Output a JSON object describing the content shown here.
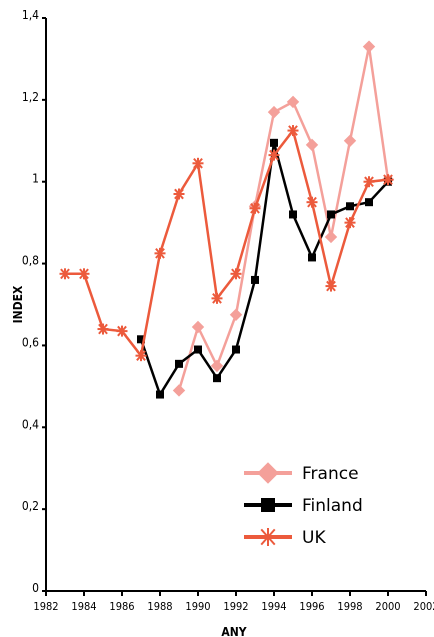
{
  "chart_data": {
    "type": "line",
    "title": "",
    "xlabel": "ANY",
    "ylabel": "INDEX",
    "xlim": [
      1982,
      2002
    ],
    "ylim": [
      0,
      1.4
    ],
    "x_ticks": [
      1982,
      1984,
      1986,
      1988,
      1990,
      1992,
      1994,
      1996,
      1998,
      2000,
      2002
    ],
    "y_ticks": [
      0,
      0.2,
      0.4,
      0.6,
      0.8,
      1,
      1.2,
      1.4
    ],
    "y_tick_labels": [
      "0",
      "0,2",
      "0,4",
      "0,6",
      "0,8",
      "1",
      "1,2",
      "1,4"
    ],
    "grid": false,
    "legend_position": "bottom-right",
    "series": [
      {
        "name": "France",
        "color": "#f4a09a",
        "marker": "diamond",
        "points": [
          [
            1989,
            0.49
          ],
          [
            1990,
            0.645
          ],
          [
            1991,
            0.55
          ],
          [
            1992,
            0.675
          ],
          [
            1993,
            0.94
          ],
          [
            1994,
            1.17
          ],
          [
            1995,
            1.195
          ],
          [
            1996,
            1.09
          ],
          [
            1997,
            0.865
          ],
          [
            1998,
            1.1
          ],
          [
            1999,
            1.33
          ],
          [
            2000,
            1.005
          ]
        ]
      },
      {
        "name": "Finland",
        "color": "#000000",
        "marker": "square",
        "points": [
          [
            1987,
            0.615
          ],
          [
            1988,
            0.48
          ],
          [
            1989,
            0.555
          ],
          [
            1990,
            0.59
          ],
          [
            1991,
            0.52
          ],
          [
            1992,
            0.59
          ],
          [
            1993,
            0.76
          ],
          [
            1994,
            1.095
          ],
          [
            1995,
            0.92
          ],
          [
            1996,
            0.815
          ],
          [
            1997,
            0.92
          ],
          [
            1998,
            0.94
          ],
          [
            1999,
            0.95
          ],
          [
            2000,
            1.0
          ]
        ]
      },
      {
        "name": "UK",
        "color": "#ec5a3c",
        "marker": "asterisk",
        "points": [
          [
            1983,
            0.775
          ],
          [
            1984,
            0.775
          ],
          [
            1985,
            0.64
          ],
          [
            1986,
            0.635
          ],
          [
            1987,
            0.575
          ],
          [
            1988,
            0.825
          ],
          [
            1989,
            0.97
          ],
          [
            1990,
            1.045
          ],
          [
            1991,
            0.715
          ],
          [
            1992,
            0.775
          ],
          [
            1993,
            0.935
          ],
          [
            1994,
            1.065
          ],
          [
            1995,
            1.125
          ],
          [
            1996,
            0.95
          ],
          [
            1997,
            0.745
          ],
          [
            1998,
            0.9
          ],
          [
            1999,
            1.0
          ],
          [
            2000,
            1.005
          ]
        ]
      }
    ]
  }
}
